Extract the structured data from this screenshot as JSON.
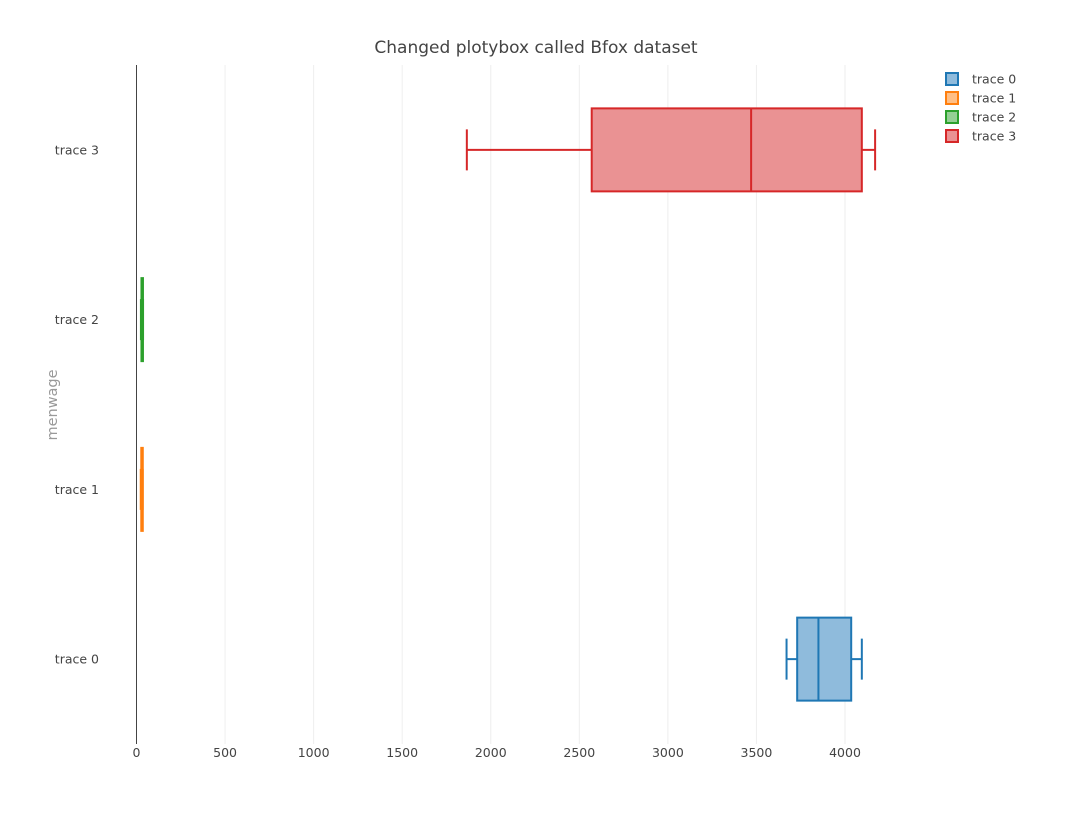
{
  "chart_data": {
    "type": "box",
    "orientation": "horizontal",
    "title": "Changed plotybox called Bfox dataset",
    "xlabel": "",
    "ylabel": "menwage",
    "xlim": [
      0,
      4500
    ],
    "x_ticks": [
      0,
      500,
      1000,
      1500,
      2000,
      2500,
      3000,
      3500,
      4000
    ],
    "grid": true,
    "legend_position": "top-right",
    "categories": [
      "trace 0",
      "trace 1",
      "trace 2",
      "trace 3"
    ],
    "series": [
      {
        "name": "trace 0",
        "color": "#1f77b4",
        "fill": "#8fbbdc",
        "whisker_low": 3670,
        "q1": 3730,
        "median": 3850,
        "q3": 4035,
        "whisker_high": 4095
      },
      {
        "name": "trace 1",
        "color": "#ff7f0e",
        "fill": "#ffbf86",
        "whisker_low": 24,
        "q1": 27,
        "median": 29,
        "q3": 32,
        "whisker_high": 35
      },
      {
        "name": "trace 2",
        "color": "#2ca02c",
        "fill": "#95cf95",
        "whisker_low": 25,
        "q1": 28,
        "median": 30,
        "q3": 34,
        "whisker_high": 37
      },
      {
        "name": "trace 3",
        "color": "#d62728",
        "fill": "#ea9293",
        "whisker_low": 1865,
        "q1": 2570,
        "median": 3470,
        "q3": 4095,
        "whisker_high": 4170
      }
    ]
  }
}
